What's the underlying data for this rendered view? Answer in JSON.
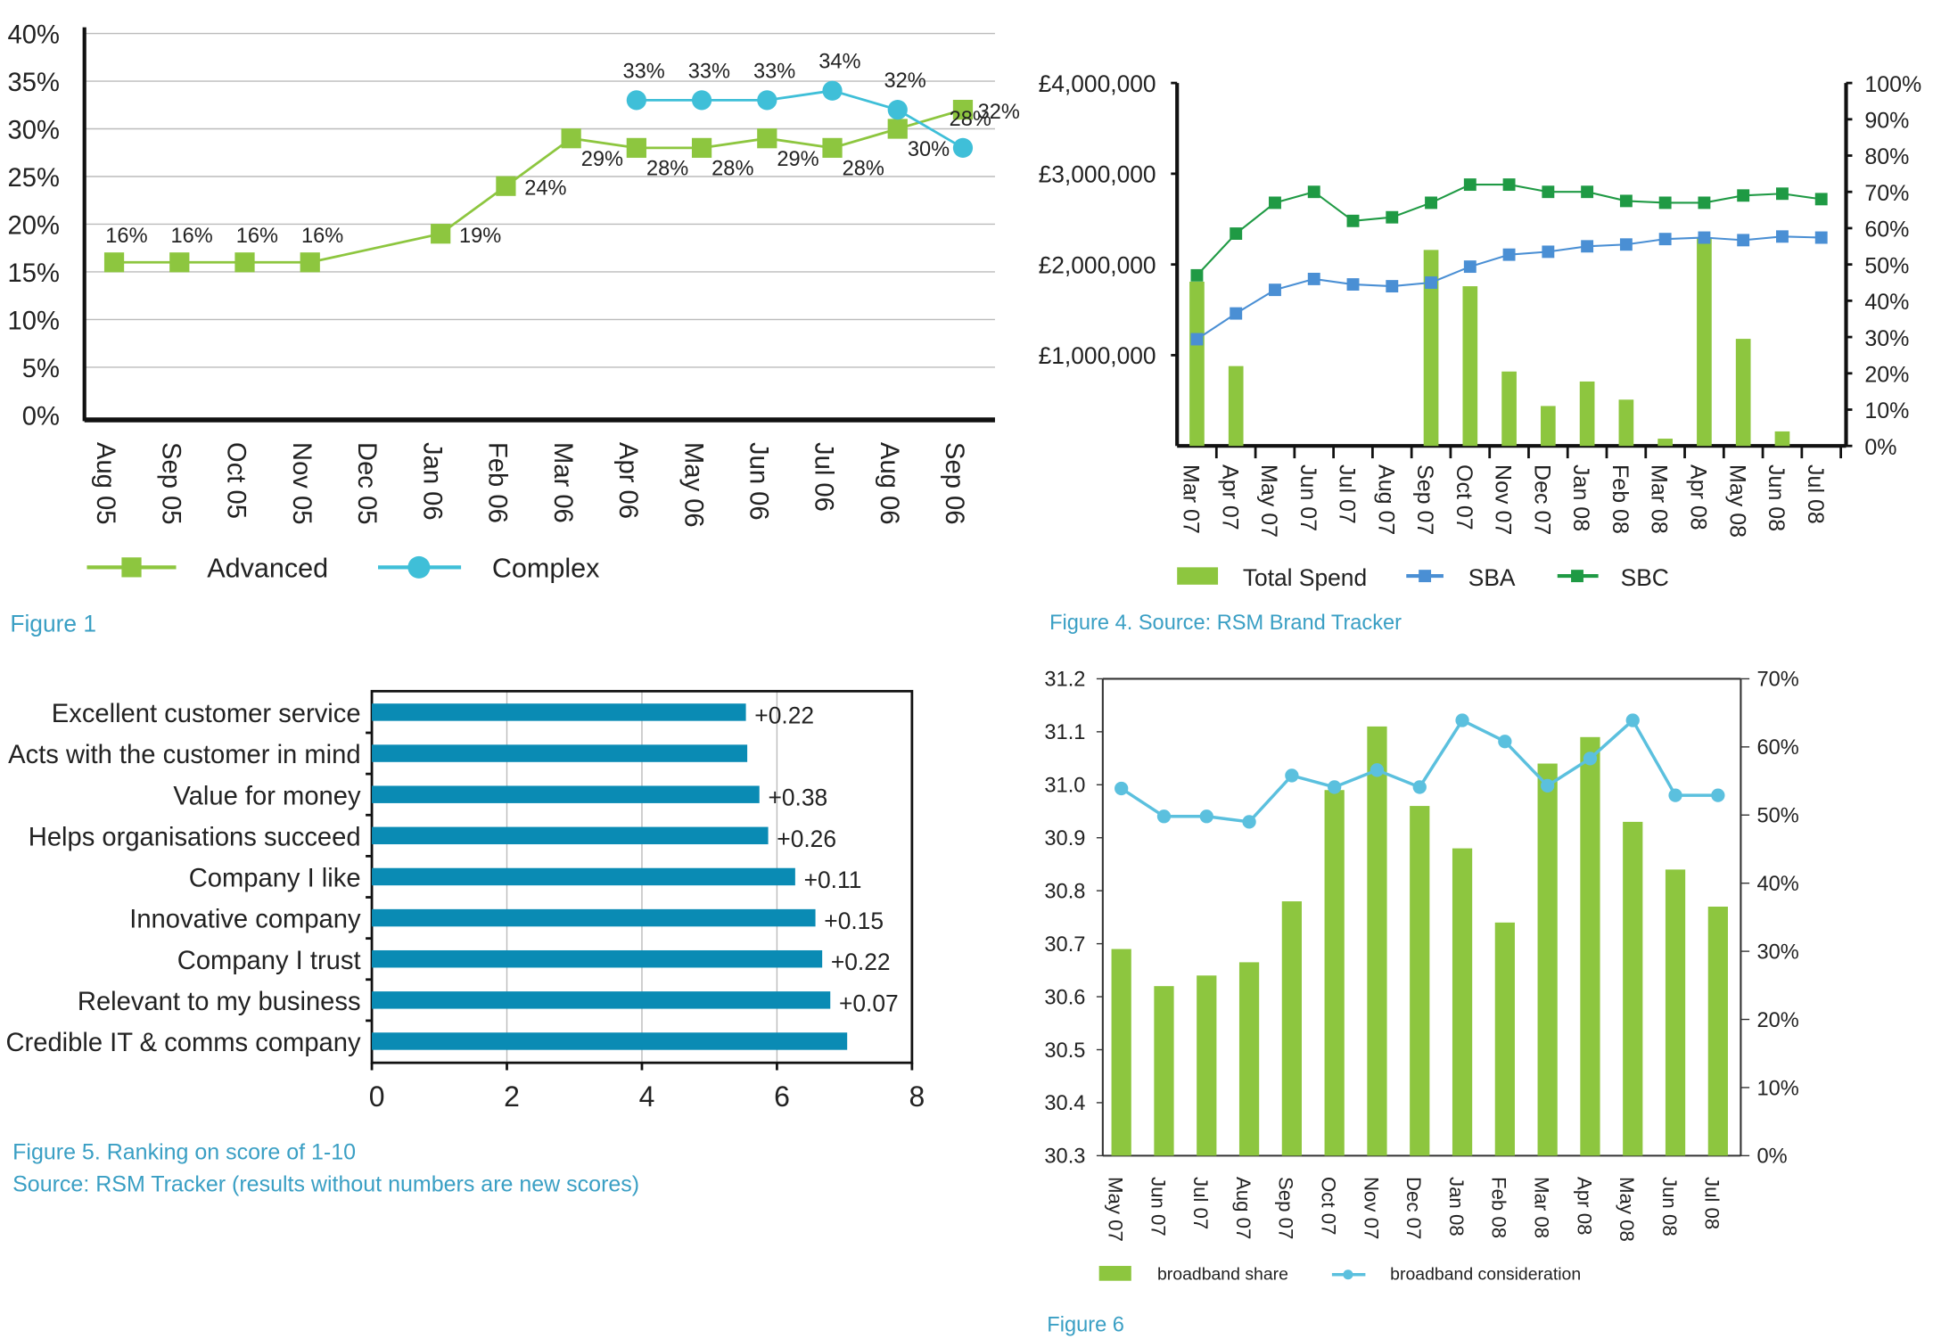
{
  "colors": {
    "green": "#8dc63f",
    "teal": "#3fbfd8",
    "darkgreen": "#1f9a44",
    "blue": "#4a8fd4",
    "barblue": "#0a8bb4",
    "caption": "#3a9fc4",
    "consideration": "#5bc0de"
  },
  "chart_data": [
    {
      "id": "fig1",
      "type": "line",
      "caption": "Figure 1",
      "categories": [
        "Aug 05",
        "Sep 05",
        "Oct 05",
        "Nov 05",
        "Dec 05",
        "Jan 06",
        "Feb 06",
        "Mar 06",
        "Apr 06",
        "May 06",
        "Jun 06",
        "Jul 06",
        "Aug 06",
        "Sep 06"
      ],
      "ylim": [
        0,
        40
      ],
      "yticks": [
        "0%",
        "5%",
        "10%",
        "15%",
        "20%",
        "25%",
        "30%",
        "35%",
        "40%"
      ],
      "grid": true,
      "legend": "bottom-left",
      "series": [
        {
          "name": "Advanced",
          "marker": "square",
          "values": [
            16,
            16,
            16,
            16,
            null,
            19,
            24,
            29,
            28,
            28,
            29,
            28,
            30,
            32
          ],
          "labels": [
            "16%",
            "16%",
            "16%",
            "16%",
            null,
            "19%",
            "24%",
            "29%",
            "28%",
            "28%",
            "29%",
            "28%",
            "30%",
            "32%"
          ]
        },
        {
          "name": "Complex",
          "marker": "circle",
          "values": [
            null,
            null,
            null,
            null,
            null,
            null,
            null,
            null,
            33,
            33,
            33,
            34,
            32,
            28
          ],
          "labels": [
            null,
            null,
            null,
            null,
            null,
            null,
            null,
            null,
            "33%",
            "33%",
            "33%",
            "34%",
            "32%",
            "28%"
          ]
        }
      ]
    },
    {
      "id": "fig4",
      "type": "bar+line",
      "caption": "Figure 4. Source: RSM Brand Tracker",
      "categories": [
        "Mar 07",
        "Apr 07",
        "May 07",
        "Jun 07",
        "Jul 07",
        "Aug 07",
        "Sep 07",
        "Oct 07",
        "Nov 07",
        "Dec 07",
        "Jan 08",
        "Feb 08",
        "Mar 08",
        "Apr 08",
        "May 08",
        "Jun 08",
        "Jul 08"
      ],
      "ylim": [
        0,
        4000000
      ],
      "yticks": [
        "£1,000,000",
        "£2,000,000",
        "£3,000,000",
        "£4,000,000"
      ],
      "y2lim": [
        0,
        100
      ],
      "y2ticks": [
        "0%",
        "10%",
        "20%",
        "30%",
        "40%",
        "50%",
        "60%",
        "70%",
        "80%",
        "90%",
        "100%"
      ],
      "legend": "bottom",
      "series": [
        {
          "name": "Total Spend",
          "type": "bar",
          "axis": "left",
          "values": [
            1810000,
            880000,
            0,
            0,
            0,
            0,
            2160000,
            1760000,
            820000,
            440000,
            710000,
            510000,
            80000,
            2300000,
            1180000,
            160000,
            0
          ]
        },
        {
          "name": "SBA",
          "type": "line",
          "axis": "right",
          "values": [
            29.4,
            36.5,
            43,
            46,
            44.5,
            44,
            45,
            49.4,
            52.7,
            53.5,
            55,
            55.5,
            57,
            57.4,
            56.7,
            57.7,
            57.4
          ]
        },
        {
          "name": "SBC",
          "type": "line",
          "axis": "right",
          "values": [
            47,
            58.5,
            67,
            70,
            62,
            63,
            67,
            72,
            72,
            70,
            70,
            67.5,
            67,
            67,
            69,
            69.5,
            68
          ]
        }
      ]
    },
    {
      "id": "fig5",
      "type": "hbar",
      "caption": "Figure 5. Ranking on score of 1-10",
      "caption2": "Source: RSM Tracker (results without numbers are new scores)",
      "categories": [
        "Excellent customer service",
        "Acts with the customer in mind",
        "Value for money",
        "Helps organisations succeed",
        "Company I like",
        "Innovative company",
        "Company I trust",
        "Relevant to my business",
        "Credible IT & comms company"
      ],
      "values": [
        5.54,
        5.56,
        5.74,
        5.87,
        6.27,
        6.57,
        6.67,
        6.79,
        7.04
      ],
      "labels": [
        "+0.22",
        null,
        "+0.38",
        "+0.26",
        "+0.11",
        "+0.15",
        "+0.22",
        "+0.07",
        null
      ],
      "xlim": [
        0,
        8
      ],
      "xticks": [
        "0",
        "2",
        "4",
        "6",
        "8"
      ],
      "grid": true
    },
    {
      "id": "fig6",
      "type": "bar+line",
      "caption": "Figure 6",
      "categories": [
        "May 07",
        "Jun 07",
        "Jul 07",
        "Aug 07",
        "Sep 07",
        "Oct 07",
        "Nov 07",
        "Dec 07",
        "Jan 08",
        "Feb 08",
        "Mar 08",
        "Apr 08",
        "May 08",
        "Jun 08",
        "Jul 08"
      ],
      "ylim": [
        30.3,
        31.2
      ],
      "yticks": [
        "30.3",
        "30.4",
        "30.5",
        "30.6",
        "30.7",
        "30.8",
        "30.9",
        "31.0",
        "31.1",
        "31.2"
      ],
      "y2lim": [
        0,
        70
      ],
      "y2ticks": [
        "0%",
        "10%",
        "20%",
        "30%",
        "40%",
        "50%",
        "60%",
        "70%"
      ],
      "legend": "bottom",
      "series": [
        {
          "name": "broadband share",
          "type": "bar",
          "axis": "left",
          "values": [
            30.69,
            30.62,
            30.64,
            30.665,
            30.78,
            30.99,
            31.11,
            30.96,
            30.88,
            30.74,
            31.04,
            31.09,
            30.93,
            30.84,
            30.77
          ]
        },
        {
          "name": "broadband consideration",
          "type": "line",
          "axis": "right",
          "values": [
            53.9,
            49.8,
            49.8,
            49,
            55.8,
            54.1,
            56.6,
            54.1,
            63.9,
            60.8,
            54.3,
            58.3,
            63.9,
            52.9,
            52.9
          ]
        }
      ]
    }
  ]
}
